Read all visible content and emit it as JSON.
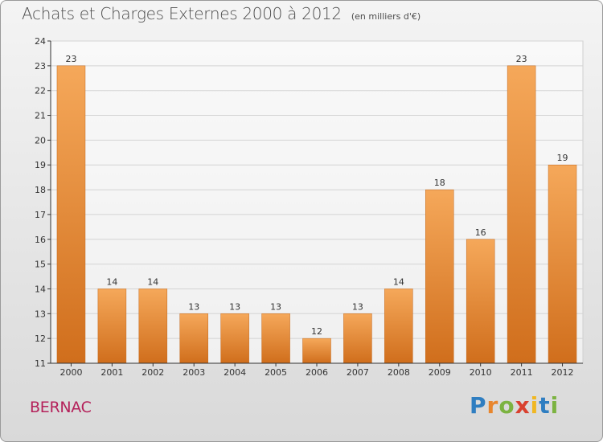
{
  "title": "Achats et Charges Externes 2000 à 2012",
  "unit_note": "(en milliers d'€)",
  "commune": "BERNAC",
  "brand": {
    "letters": [
      "P",
      "r",
      "o",
      "x",
      "i",
      "t",
      "i"
    ],
    "colors": [
      "#2f7ec1",
      "#e8862d",
      "#7cb341",
      "#d9412f",
      "#f0b722",
      "#2f7ec1",
      "#7cb341"
    ]
  },
  "colors": {
    "bar_light": "#f5a85a",
    "bar_dark": "#d06e1c",
    "axis": "#333333"
  },
  "chart_data": {
    "type": "bar",
    "categories": [
      "2000",
      "2001",
      "2002",
      "2003",
      "2004",
      "2005",
      "2006",
      "2007",
      "2008",
      "2009",
      "2010",
      "2011",
      "2012"
    ],
    "values": [
      23,
      14,
      14,
      13,
      13,
      13,
      12,
      13,
      14,
      18,
      16,
      23,
      19
    ],
    "ylim": [
      11,
      24
    ],
    "yticks": [
      11,
      12,
      13,
      14,
      15,
      16,
      17,
      18,
      19,
      20,
      21,
      22,
      23,
      24
    ],
    "grid": true,
    "legend": "none"
  }
}
